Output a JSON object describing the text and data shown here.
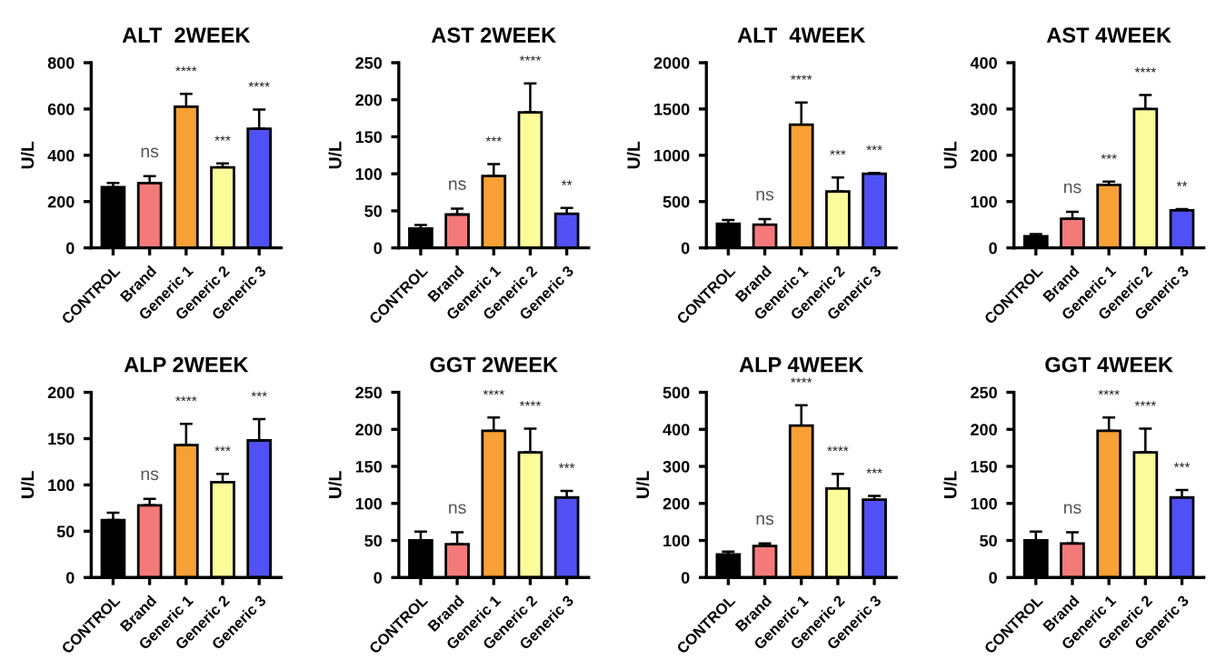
{
  "chart_data": [
    {
      "type": "bar",
      "title": "ALT  2WEEK",
      "ylabel": "U/L",
      "categories": [
        "CONTROL",
        "Brand",
        "Generic 1",
        "Generic 2",
        "Generic 3"
      ],
      "colors": [
        "#000000",
        "#f47a7a",
        "#f7a035",
        "#fbfb9a",
        "#5050f5"
      ],
      "values": [
        262,
        280,
        610,
        348,
        515
      ],
      "errors": [
        [
          262,
          280
        ],
        [
          280,
          310
        ],
        [
          610,
          665
        ],
        [
          348,
          365
        ],
        [
          515,
          598
        ]
      ],
      "ylim": [
        0,
        800
      ],
      "yticks": [
        0,
        200,
        400,
        600,
        800
      ],
      "annotations": [
        {
          "text": "ns",
          "x": "Brand",
          "y": 310
        },
        {
          "text": "****",
          "x": "Generic 1",
          "y": 665
        },
        {
          "text": "***",
          "x": "Generic 2",
          "y": 365
        },
        {
          "text": "****",
          "x": "Generic 3",
          "y": 598
        }
      ]
    },
    {
      "type": "bar",
      "title": "AST 2WEEK",
      "ylabel": "U/L",
      "categories": [
        "CONTROL",
        "Brand",
        "Generic 1",
        "Generic 2",
        "Generic 3"
      ],
      "colors": [
        "#000000",
        "#f47a7a",
        "#f7a035",
        "#fbfb9a",
        "#5050f5"
      ],
      "values": [
        26,
        45,
        97,
        183,
        46
      ],
      "errors": [
        [
          26,
          31
        ],
        [
          45,
          53
        ],
        [
          97,
          113
        ],
        [
          183,
          222
        ],
        [
          46,
          54
        ]
      ],
      "ylim": [
        0,
        250
      ],
      "yticks": [
        0,
        50,
        100,
        150,
        200,
        250
      ],
      "annotations": [
        {
          "text": "ns",
          "x": "Brand",
          "y": 53
        },
        {
          "text": "***",
          "x": "Generic 1",
          "y": 113
        },
        {
          "text": "****",
          "x": "Generic 2",
          "y": 222
        },
        {
          "text": "**",
          "x": "Generic 3",
          "y": 54
        }
      ]
    },
    {
      "type": "bar",
      "title": "ALT  4WEEK",
      "ylabel": "U/L",
      "categories": [
        "CONTROL",
        "Brand",
        "Generic 1",
        "Generic 2",
        "Generic 3"
      ],
      "colors": [
        "#000000",
        "#f47a7a",
        "#f7a035",
        "#fbfb9a",
        "#5050f5"
      ],
      "values": [
        260,
        250,
        1330,
        610,
        800
      ],
      "errors": [
        [
          260,
          300
        ],
        [
          250,
          310
        ],
        [
          1330,
          1570
        ],
        [
          610,
          760
        ],
        [
          800,
          810
        ]
      ],
      "ylim": [
        0,
        2000
      ],
      "yticks": [
        0,
        500,
        1000,
        1500,
        2000
      ],
      "annotations": [
        {
          "text": "ns",
          "x": "Brand",
          "y": 310
        },
        {
          "text": "****",
          "x": "Generic 1",
          "y": 1570
        },
        {
          "text": "***",
          "x": "Generic 2",
          "y": 760
        },
        {
          "text": "***",
          "x": "Generic 3",
          "y": 810
        }
      ]
    },
    {
      "type": "bar",
      "title": "AST 4WEEK",
      "ylabel": "U/L",
      "categories": [
        "CONTROL",
        "Brand",
        "Generic 1",
        "Generic 2",
        "Generic 3"
      ],
      "colors": [
        "#000000",
        "#f47a7a",
        "#f7a035",
        "#fbfb9a",
        "#5050f5"
      ],
      "values": [
        25,
        63,
        136,
        300,
        81
      ],
      "errors": [
        [
          25,
          30
        ],
        [
          63,
          78
        ],
        [
          136,
          143
        ],
        [
          300,
          330
        ],
        [
          81,
          84
        ]
      ],
      "ylim": [
        0,
        400
      ],
      "yticks": [
        0,
        100,
        200,
        300,
        400
      ],
      "annotations": [
        {
          "text": "ns",
          "x": "Brand",
          "y": 78
        },
        {
          "text": "***",
          "x": "Generic 1",
          "y": 143
        },
        {
          "text": "****",
          "x": "Generic 2",
          "y": 330
        },
        {
          "text": "**",
          "x": "Generic 3",
          "y": 84
        }
      ]
    },
    {
      "type": "bar",
      "title": "ALP 2WEEK",
      "ylabel": "U/L",
      "categories": [
        "CONTROL",
        "Brand",
        "Generic 1",
        "Generic 2",
        "Generic 3"
      ],
      "colors": [
        "#000000",
        "#f47a7a",
        "#f7a035",
        "#fbfb9a",
        "#5050f5"
      ],
      "values": [
        62,
        78,
        143,
        103,
        148
      ],
      "errors": [
        [
          62,
          70
        ],
        [
          78,
          85
        ],
        [
          143,
          166
        ],
        [
          103,
          112
        ],
        [
          148,
          171
        ]
      ],
      "ylim": [
        0,
        200
      ],
      "yticks": [
        0,
        50,
        100,
        150,
        200
      ],
      "annotations": [
        {
          "text": "ns",
          "x": "Brand",
          "y": 85
        },
        {
          "text": "****",
          "x": "Generic 1",
          "y": 166
        },
        {
          "text": "***",
          "x": "Generic 2",
          "y": 112
        },
        {
          "text": "***",
          "x": "Generic 3",
          "y": 171
        }
      ]
    },
    {
      "type": "bar",
      "title": "GGT 2WEEK",
      "ylabel": "U/L",
      "categories": [
        "CONTROL",
        "Brand",
        "Generic 1",
        "Generic 2",
        "Generic 3"
      ],
      "colors": [
        "#000000",
        "#f47a7a",
        "#f7a035",
        "#fbfb9a",
        "#5050f5"
      ],
      "values": [
        50,
        45,
        198,
        169,
        108
      ],
      "errors": [
        [
          50,
          62
        ],
        [
          45,
          61
        ],
        [
          198,
          216
        ],
        [
          169,
          201
        ],
        [
          108,
          117
        ]
      ],
      "ylim": [
        0,
        250
      ],
      "yticks": [
        0,
        50,
        100,
        150,
        200,
        250
      ],
      "annotations": [
        {
          "text": "ns",
          "x": "Brand",
          "y": 61
        },
        {
          "text": "****",
          "x": "Generic 1",
          "y": 216
        },
        {
          "text": "****",
          "x": "Generic 2",
          "y": 201
        },
        {
          "text": "***",
          "x": "Generic 3",
          "y": 117
        }
      ]
    },
    {
      "type": "bar",
      "title": "ALP 4WEEK",
      "ylabel": "U/L",
      "categories": [
        "CONTROL",
        "Brand",
        "Generic 1",
        "Generic 2",
        "Generic 3"
      ],
      "colors": [
        "#000000",
        "#f47a7a",
        "#f7a035",
        "#fbfb9a",
        "#5050f5"
      ],
      "values": [
        62,
        85,
        410,
        240,
        210
      ],
      "errors": [
        [
          62,
          70
        ],
        [
          85,
          92
        ],
        [
          410,
          465
        ],
        [
          240,
          280
        ],
        [
          210,
          220
        ]
      ],
      "ylim": [
        0,
        500
      ],
      "yticks": [
        0,
        100,
        200,
        300,
        400,
        500
      ],
      "annotations": [
        {
          "text": "ns",
          "x": "Brand",
          "y": 92
        },
        {
          "text": "****",
          "x": "Generic 1",
          "y": 465
        },
        {
          "text": "****",
          "x": "Generic 2",
          "y": 280
        },
        {
          "text": "***",
          "x": "Generic 3",
          "y": 220
        }
      ]
    },
    {
      "type": "bar",
      "title": "GGT 4WEEK",
      "ylabel": "U/L",
      "categories": [
        "CONTROL",
        "Brand",
        "Generic 1",
        "Generic 2",
        "Generic 3"
      ],
      "colors": [
        "#000000",
        "#f47a7a",
        "#f7a035",
        "#fbfb9a",
        "#5050f5"
      ],
      "values": [
        50,
        46,
        198,
        169,
        108
      ],
      "errors": [
        [
          50,
          62
        ],
        [
          46,
          61
        ],
        [
          198,
          216
        ],
        [
          169,
          201
        ],
        [
          108,
          118
        ]
      ],
      "ylim": [
        0,
        250
      ],
      "yticks": [
        0,
        50,
        100,
        150,
        200,
        250
      ],
      "annotations": [
        {
          "text": "ns",
          "x": "Brand",
          "y": 61
        },
        {
          "text": "****",
          "x": "Generic 1",
          "y": 216
        },
        {
          "text": "****",
          "x": "Generic 2",
          "y": 201
        },
        {
          "text": "***",
          "x": "Generic 3",
          "y": 118
        }
      ]
    }
  ]
}
